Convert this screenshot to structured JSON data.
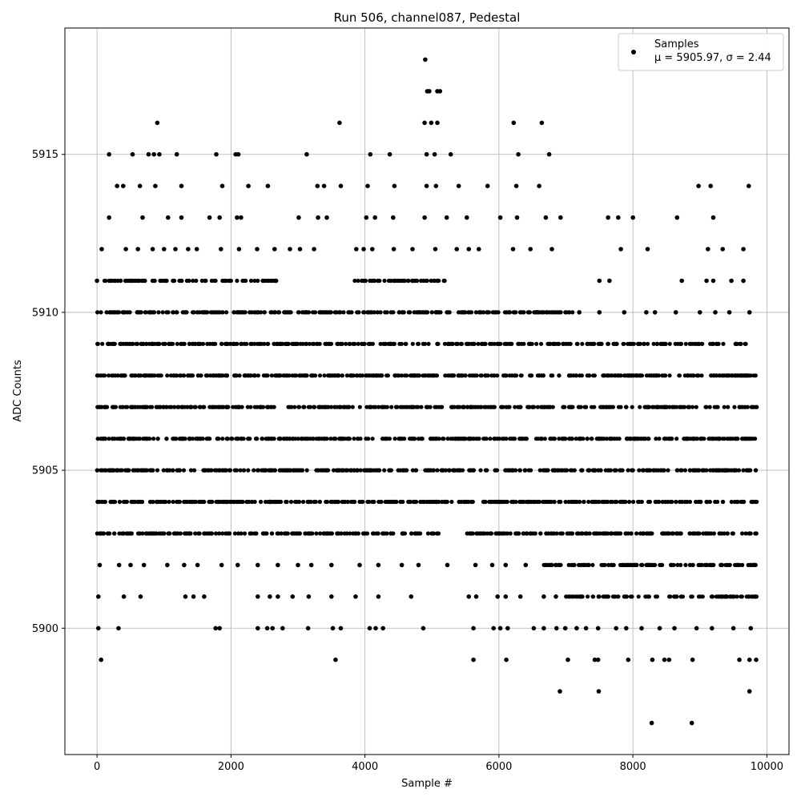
{
  "chart_data": {
    "type": "scatter",
    "title": "Run 506, channel087, Pedestal",
    "xlabel": "Sample #",
    "ylabel": "ADC Counts",
    "xlim": [
      -480,
      10330
    ],
    "ylim": [
      5896.0,
      5919.0
    ],
    "x_ticks": [
      0,
      2000,
      4000,
      6000,
      8000,
      10000
    ],
    "y_ticks": [
      5900,
      5905,
      5910,
      5915
    ],
    "x_tick_labels": [
      "0",
      "2000",
      "4000",
      "6000",
      "8000",
      "10000"
    ],
    "y_tick_labels": [
      "5900",
      "5905",
      "5910",
      "5915"
    ],
    "grid": true,
    "marker_color": "#000000",
    "legend": {
      "location": "top-right",
      "series_name": "Samples",
      "stats_label": "μ = 5905.97, σ = 2.44"
    },
    "sample_count": 9850,
    "series": [
      {
        "name": "Samples",
        "bands": [
          {
            "y": 5904,
            "x_ranges": [
              [
                0,
                9850
              ]
            ]
          },
          {
            "y": 5905,
            "x_ranges": [
              [
                0,
                9850
              ]
            ]
          },
          {
            "y": 5906,
            "x_ranges": [
              [
                0,
                9850
              ]
            ]
          },
          {
            "y": 5907,
            "x_ranges": [
              [
                0,
                9850
              ]
            ]
          },
          {
            "y": 5908,
            "x_ranges": [
              [
                0,
                9850
              ]
            ]
          },
          {
            "y": 5909,
            "x_ranges": [
              [
                0,
                5600
              ],
              [
                5600,
                6900
              ],
              [
                6900,
                9700
              ]
            ]
          },
          {
            "y": 5910,
            "x_ranges": [
              [
                0,
                6000
              ],
              [
                6000,
                7100
              ]
            ]
          },
          {
            "y": 5903,
            "x_ranges": [
              [
                0,
                5100
              ],
              [
                5500,
                9850
              ]
            ]
          },
          {
            "y": 5902,
            "x_ranges": [
              [
                6600,
                9850
              ]
            ]
          },
          {
            "y": 5901,
            "x_ranges": [
              [
                7000,
                9850
              ]
            ]
          },
          {
            "y": 5911,
            "x_ranges": [
              [
                100,
                2700
              ],
              [
                3800,
                5200
              ]
            ]
          }
        ],
        "points": [
          {
            "x": 900,
            "y": 5916
          },
          {
            "x": 3620,
            "y": 5916
          },
          {
            "x": 4890,
            "y": 5916
          },
          {
            "x": 4990,
            "y": 5916
          },
          {
            "x": 5080,
            "y": 5916
          },
          {
            "x": 6220,
            "y": 5916
          },
          {
            "x": 6640,
            "y": 5916
          },
          {
            "x": 4930,
            "y": 5917
          },
          {
            "x": 4960,
            "y": 5917
          },
          {
            "x": 5080,
            "y": 5917
          },
          {
            "x": 5120,
            "y": 5917
          },
          {
            "x": 4900,
            "y": 5918
          },
          {
            "x": 180,
            "y": 5915
          },
          {
            "x": 530,
            "y": 5915
          },
          {
            "x": 770,
            "y": 5915
          },
          {
            "x": 850,
            "y": 5915
          },
          {
            "x": 930,
            "y": 5915
          },
          {
            "x": 1190,
            "y": 5915
          },
          {
            "x": 1780,
            "y": 5915
          },
          {
            "x": 2070,
            "y": 5915
          },
          {
            "x": 2110,
            "y": 5915
          },
          {
            "x": 3130,
            "y": 5915
          },
          {
            "x": 4080,
            "y": 5915
          },
          {
            "x": 4370,
            "y": 5915
          },
          {
            "x": 4920,
            "y": 5915
          },
          {
            "x": 5040,
            "y": 5915
          },
          {
            "x": 5280,
            "y": 5915
          },
          {
            "x": 6290,
            "y": 5915
          },
          {
            "x": 6750,
            "y": 5915
          },
          {
            "x": 300,
            "y": 5914
          },
          {
            "x": 390,
            "y": 5914
          },
          {
            "x": 640,
            "y": 5914
          },
          {
            "x": 870,
            "y": 5914
          },
          {
            "x": 1260,
            "y": 5914
          },
          {
            "x": 1870,
            "y": 5914
          },
          {
            "x": 2260,
            "y": 5914
          },
          {
            "x": 2550,
            "y": 5914
          },
          {
            "x": 3290,
            "y": 5914
          },
          {
            "x": 3390,
            "y": 5914
          },
          {
            "x": 3640,
            "y": 5914
          },
          {
            "x": 4040,
            "y": 5914
          },
          {
            "x": 4440,
            "y": 5914
          },
          {
            "x": 4920,
            "y": 5914
          },
          {
            "x": 5060,
            "y": 5914
          },
          {
            "x": 5400,
            "y": 5914
          },
          {
            "x": 5830,
            "y": 5914
          },
          {
            "x": 6260,
            "y": 5914
          },
          {
            "x": 6600,
            "y": 5914
          },
          {
            "x": 8980,
            "y": 5914
          },
          {
            "x": 9160,
            "y": 5914
          },
          {
            "x": 9730,
            "y": 5914
          },
          {
            "x": 180,
            "y": 5913
          },
          {
            "x": 680,
            "y": 5913
          },
          {
            "x": 1060,
            "y": 5913
          },
          {
            "x": 1260,
            "y": 5913
          },
          {
            "x": 1680,
            "y": 5913
          },
          {
            "x": 1830,
            "y": 5913
          },
          {
            "x": 2090,
            "y": 5913
          },
          {
            "x": 2150,
            "y": 5913
          },
          {
            "x": 3010,
            "y": 5913
          },
          {
            "x": 3300,
            "y": 5913
          },
          {
            "x": 3430,
            "y": 5913
          },
          {
            "x": 4020,
            "y": 5913
          },
          {
            "x": 4150,
            "y": 5913
          },
          {
            "x": 4420,
            "y": 5913
          },
          {
            "x": 4890,
            "y": 5913
          },
          {
            "x": 5220,
            "y": 5913
          },
          {
            "x": 5520,
            "y": 5913
          },
          {
            "x": 6020,
            "y": 5913
          },
          {
            "x": 6270,
            "y": 5913
          },
          {
            "x": 6700,
            "y": 5913
          },
          {
            "x": 6920,
            "y": 5913
          },
          {
            "x": 7630,
            "y": 5913
          },
          {
            "x": 7780,
            "y": 5913
          },
          {
            "x": 8000,
            "y": 5913
          },
          {
            "x": 8660,
            "y": 5913
          },
          {
            "x": 9200,
            "y": 5913
          },
          {
            "x": 70,
            "y": 5912
          },
          {
            "x": 430,
            "y": 5912
          },
          {
            "x": 610,
            "y": 5912
          },
          {
            "x": 830,
            "y": 5912
          },
          {
            "x": 1000,
            "y": 5912
          },
          {
            "x": 1170,
            "y": 5912
          },
          {
            "x": 1360,
            "y": 5912
          },
          {
            "x": 1490,
            "y": 5912
          },
          {
            "x": 1850,
            "y": 5912
          },
          {
            "x": 2120,
            "y": 5912
          },
          {
            "x": 2390,
            "y": 5912
          },
          {
            "x": 2650,
            "y": 5912
          },
          {
            "x": 2880,
            "y": 5912
          },
          {
            "x": 3030,
            "y": 5912
          },
          {
            "x": 3240,
            "y": 5912
          },
          {
            "x": 3870,
            "y": 5912
          },
          {
            "x": 3980,
            "y": 5912
          },
          {
            "x": 4110,
            "y": 5912
          },
          {
            "x": 4430,
            "y": 5912
          },
          {
            "x": 4710,
            "y": 5912
          },
          {
            "x": 5050,
            "y": 5912
          },
          {
            "x": 5370,
            "y": 5912
          },
          {
            "x": 5550,
            "y": 5912
          },
          {
            "x": 5700,
            "y": 5912
          },
          {
            "x": 6210,
            "y": 5912
          },
          {
            "x": 6470,
            "y": 5912
          },
          {
            "x": 6790,
            "y": 5912
          },
          {
            "x": 7820,
            "y": 5912
          },
          {
            "x": 8220,
            "y": 5912
          },
          {
            "x": 9120,
            "y": 5912
          },
          {
            "x": 9340,
            "y": 5912
          },
          {
            "x": 9650,
            "y": 5912
          },
          {
            "x": 0,
            "y": 5911
          },
          {
            "x": 7500,
            "y": 5911
          },
          {
            "x": 7650,
            "y": 5911
          },
          {
            "x": 8730,
            "y": 5911
          },
          {
            "x": 9100,
            "y": 5911
          },
          {
            "x": 9200,
            "y": 5911
          },
          {
            "x": 9470,
            "y": 5911
          },
          {
            "x": 9650,
            "y": 5911
          },
          {
            "x": 7200,
            "y": 5910
          },
          {
            "x": 7500,
            "y": 5910
          },
          {
            "x": 7870,
            "y": 5910
          },
          {
            "x": 8200,
            "y": 5910
          },
          {
            "x": 8330,
            "y": 5910
          },
          {
            "x": 8640,
            "y": 5910
          },
          {
            "x": 9000,
            "y": 5910
          },
          {
            "x": 9230,
            "y": 5910
          },
          {
            "x": 9440,
            "y": 5910
          },
          {
            "x": 9740,
            "y": 5910
          },
          {
            "x": 40,
            "y": 5902
          },
          {
            "x": 330,
            "y": 5902
          },
          {
            "x": 500,
            "y": 5902
          },
          {
            "x": 700,
            "y": 5902
          },
          {
            "x": 1050,
            "y": 5902
          },
          {
            "x": 1300,
            "y": 5902
          },
          {
            "x": 1500,
            "y": 5902
          },
          {
            "x": 1860,
            "y": 5902
          },
          {
            "x": 2100,
            "y": 5902
          },
          {
            "x": 2400,
            "y": 5902
          },
          {
            "x": 2700,
            "y": 5902
          },
          {
            "x": 3000,
            "y": 5902
          },
          {
            "x": 3200,
            "y": 5902
          },
          {
            "x": 3500,
            "y": 5902
          },
          {
            "x": 3920,
            "y": 5902
          },
          {
            "x": 4200,
            "y": 5902
          },
          {
            "x": 4550,
            "y": 5902
          },
          {
            "x": 4800,
            "y": 5902
          },
          {
            "x": 5230,
            "y": 5902
          },
          {
            "x": 5650,
            "y": 5902
          },
          {
            "x": 5900,
            "y": 5902
          },
          {
            "x": 6100,
            "y": 5902
          },
          {
            "x": 6400,
            "y": 5902
          },
          {
            "x": 20,
            "y": 5901
          },
          {
            "x": 400,
            "y": 5901
          },
          {
            "x": 650,
            "y": 5901
          },
          {
            "x": 1320,
            "y": 5901
          },
          {
            "x": 1440,
            "y": 5901
          },
          {
            "x": 1600,
            "y": 5901
          },
          {
            "x": 2400,
            "y": 5901
          },
          {
            "x": 2580,
            "y": 5901
          },
          {
            "x": 2700,
            "y": 5901
          },
          {
            "x": 2920,
            "y": 5901
          },
          {
            "x": 3160,
            "y": 5901
          },
          {
            "x": 3500,
            "y": 5901
          },
          {
            "x": 3860,
            "y": 5901
          },
          {
            "x": 4200,
            "y": 5901
          },
          {
            "x": 4690,
            "y": 5901
          },
          {
            "x": 5550,
            "y": 5901
          },
          {
            "x": 5660,
            "y": 5901
          },
          {
            "x": 5980,
            "y": 5901
          },
          {
            "x": 6100,
            "y": 5901
          },
          {
            "x": 6320,
            "y": 5901
          },
          {
            "x": 6670,
            "y": 5901
          },
          {
            "x": 6850,
            "y": 5901
          },
          {
            "x": 20,
            "y": 5900
          },
          {
            "x": 320,
            "y": 5900
          },
          {
            "x": 1770,
            "y": 5900
          },
          {
            "x": 1830,
            "y": 5900
          },
          {
            "x": 2400,
            "y": 5900
          },
          {
            "x": 2540,
            "y": 5900
          },
          {
            "x": 2620,
            "y": 5900
          },
          {
            "x": 2770,
            "y": 5900
          },
          {
            "x": 3150,
            "y": 5900
          },
          {
            "x": 3520,
            "y": 5900
          },
          {
            "x": 3640,
            "y": 5900
          },
          {
            "x": 4070,
            "y": 5900
          },
          {
            "x": 4160,
            "y": 5900
          },
          {
            "x": 4270,
            "y": 5900
          },
          {
            "x": 4870,
            "y": 5900
          },
          {
            "x": 5620,
            "y": 5900
          },
          {
            "x": 5920,
            "y": 5900
          },
          {
            "x": 6020,
            "y": 5900
          },
          {
            "x": 6130,
            "y": 5900
          },
          {
            "x": 6520,
            "y": 5900
          },
          {
            "x": 6670,
            "y": 5900
          },
          {
            "x": 6860,
            "y": 5900
          },
          {
            "x": 6990,
            "y": 5900
          },
          {
            "x": 7160,
            "y": 5900
          },
          {
            "x": 7300,
            "y": 5900
          },
          {
            "x": 7480,
            "y": 5900
          },
          {
            "x": 7750,
            "y": 5900
          },
          {
            "x": 7900,
            "y": 5900
          },
          {
            "x": 8130,
            "y": 5900
          },
          {
            "x": 8400,
            "y": 5900
          },
          {
            "x": 8620,
            "y": 5900
          },
          {
            "x": 8950,
            "y": 5900
          },
          {
            "x": 9180,
            "y": 5900
          },
          {
            "x": 9500,
            "y": 5900
          },
          {
            "x": 9760,
            "y": 5900
          },
          {
            "x": 60,
            "y": 5899
          },
          {
            "x": 3560,
            "y": 5899
          },
          {
            "x": 5620,
            "y": 5899
          },
          {
            "x": 6110,
            "y": 5899
          },
          {
            "x": 7030,
            "y": 5899
          },
          {
            "x": 7430,
            "y": 5899
          },
          {
            "x": 7480,
            "y": 5899
          },
          {
            "x": 7930,
            "y": 5899
          },
          {
            "x": 8290,
            "y": 5899
          },
          {
            "x": 8470,
            "y": 5899
          },
          {
            "x": 8540,
            "y": 5899
          },
          {
            "x": 8890,
            "y": 5899
          },
          {
            "x": 9590,
            "y": 5899
          },
          {
            "x": 9740,
            "y": 5899
          },
          {
            "x": 9840,
            "y": 5899
          },
          {
            "x": 6910,
            "y": 5898
          },
          {
            "x": 7490,
            "y": 5898
          },
          {
            "x": 9740,
            "y": 5898
          },
          {
            "x": 8280,
            "y": 5897
          },
          {
            "x": 8880,
            "y": 5897
          }
        ]
      }
    ]
  }
}
